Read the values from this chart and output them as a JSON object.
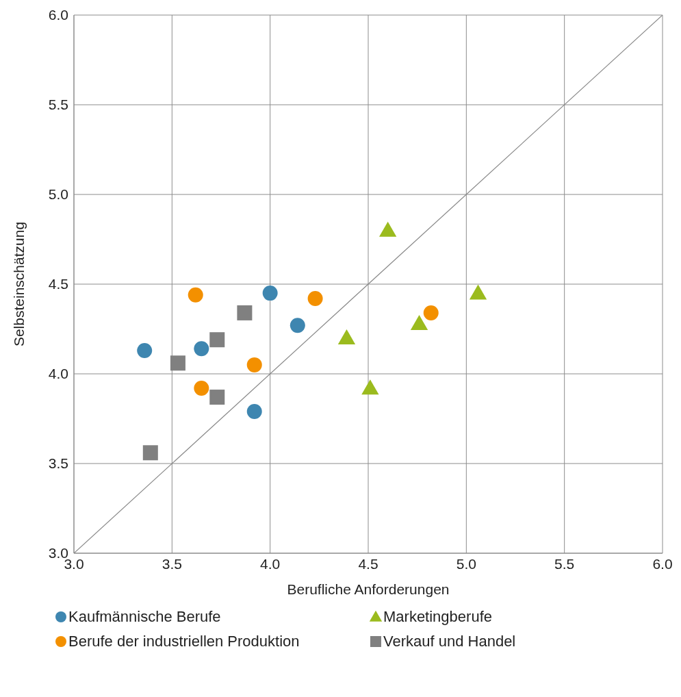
{
  "chart_data": {
    "type": "scatter",
    "xlabel": "Berufliche Anforderungen",
    "ylabel": "Selbsteinschätzung",
    "xlim": [
      3.0,
      6.0
    ],
    "xticks": [
      {
        "value": 3,
        "label": "3.0"
      },
      {
        "value": 3.5,
        "label": "3.5"
      },
      {
        "value": 4,
        "label": "4.0"
      },
      {
        "value": 4.5,
        "label": "4.5"
      },
      {
        "value": 5,
        "label": "5.0"
      },
      {
        "value": 5.5,
        "label": "5.5"
      },
      {
        "value": 6,
        "label": "6.0"
      }
    ],
    "ylim": [
      3.0,
      6.0
    ],
    "yticks": [
      {
        "value": 3,
        "label": "3.0"
      },
      {
        "value": 3.5,
        "label": "3.5"
      },
      {
        "value": 4,
        "label": "4.0"
      },
      {
        "value": 4.5,
        "label": "4.5"
      },
      {
        "value": 5,
        "label": "5.0"
      },
      {
        "value": 5.5,
        "label": "5.5"
      },
      {
        "value": 6,
        "label": "6.0"
      }
    ],
    "grid": true,
    "legend": "bottom",
    "series": [
      {
        "name": "Kaufmännische Berufe",
        "color": "#3e86b0",
        "marker": "circle",
        "x": [
          3.36,
          3.65,
          4.0,
          4.14,
          3.92
        ],
        "values": [
          4.13,
          4.14,
          4.45,
          4.27,
          3.79
        ]
      },
      {
        "name": "Marketingberufe",
        "color": "#9bbb1e",
        "marker": "triangle",
        "x": [
          4.6,
          5.06,
          4.39,
          4.76,
          4.51
        ],
        "values": [
          4.8,
          4.45,
          4.2,
          4.28,
          3.92
        ]
      },
      {
        "name": "Berufe der industriellen Produktion",
        "color": "#f39000",
        "marker": "circle",
        "x": [
          3.62,
          4.23,
          3.92,
          3.65,
          4.82
        ],
        "values": [
          4.44,
          4.42,
          4.05,
          3.92,
          4.34
        ]
      },
      {
        "name": "Verkauf und Handel",
        "color": "#808080",
        "marker": "square",
        "x": [
          3.87,
          3.73,
          3.53,
          3.73,
          3.39
        ],
        "values": [
          4.34,
          4.19,
          4.06,
          3.87,
          3.56
        ]
      },
      {
        "type": "line",
        "color": "#888888",
        "marker": "none",
        "x": [
          3.0,
          6.0
        ],
        "values": [
          3.0,
          6.0
        ]
      }
    ]
  }
}
